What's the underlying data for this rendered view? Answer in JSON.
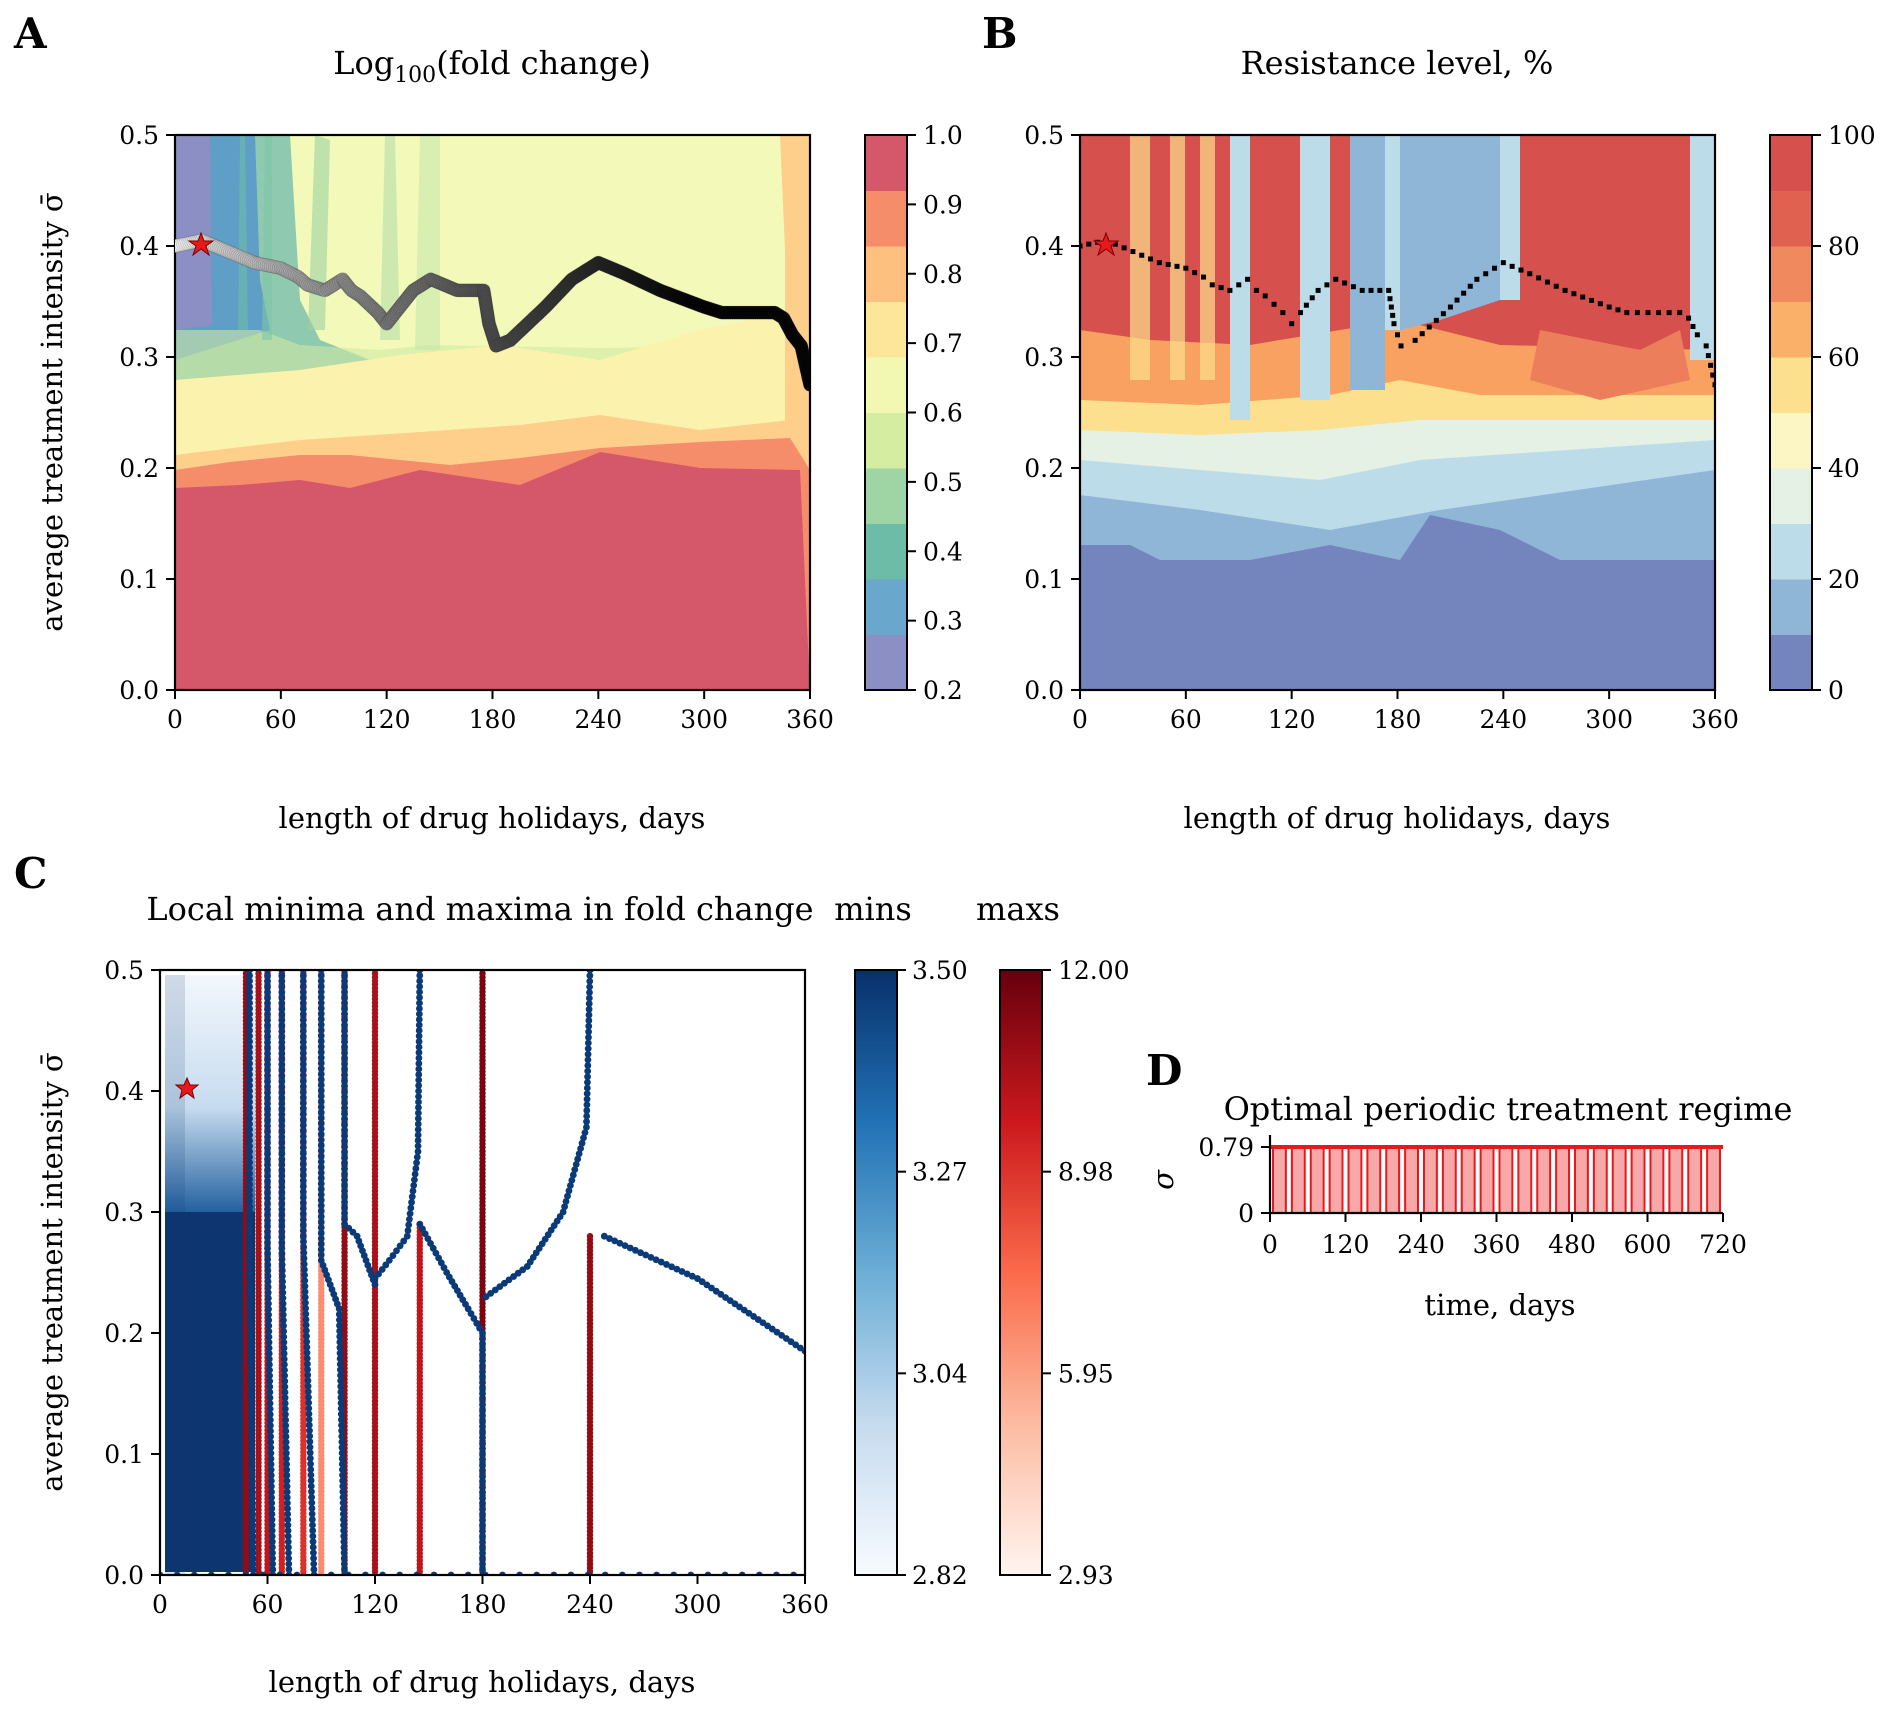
{
  "panels": {
    "A": {
      "letter": "A",
      "title_main": "Log",
      "title_sub": "100",
      "title_rest": "(fold change)",
      "xlabel": "length of drug holidays, days",
      "ylabel": "average treatment intensity σ̄",
      "xticks": [
        "0",
        "60",
        "120",
        "180",
        "240",
        "300",
        "360"
      ],
      "yticks": [
        "0.0",
        "0.1",
        "0.2",
        "0.3",
        "0.4",
        "0.5"
      ],
      "colorbar_ticks": [
        "0.2",
        "0.3",
        "0.4",
        "0.5",
        "0.6",
        "0.7",
        "0.8",
        "0.9",
        "1.0"
      ]
    },
    "B": {
      "letter": "B",
      "title": "Resistance level, %",
      "xlabel": "length of drug holidays, days",
      "xticks": [
        "0",
        "60",
        "120",
        "180",
        "240",
        "300",
        "360"
      ],
      "yticks": [
        "0.0",
        "0.1",
        "0.2",
        "0.3",
        "0.4",
        "0.5"
      ],
      "colorbar_ticks": [
        "0",
        "20",
        "40",
        "60",
        "80",
        "100"
      ]
    },
    "C": {
      "letter": "C",
      "title": "Local minima and maxima in fold change",
      "xlabel": "length of drug holidays, days",
      "ylabel": "average treatment intensity σ̄",
      "xticks": [
        "0",
        "60",
        "120",
        "180",
        "240",
        "300",
        "360"
      ],
      "yticks": [
        "0.0",
        "0.1",
        "0.2",
        "0.3",
        "0.4",
        "0.5"
      ],
      "mins_label": "mins",
      "maxs_label": "maxs",
      "mins_ticks": [
        "3.50",
        "3.27",
        "3.04",
        "2.82"
      ],
      "maxs_ticks": [
        "12.00",
        "8.98",
        "5.95",
        "2.93"
      ]
    },
    "D": {
      "letter": "D",
      "title": "Optimal periodic treatment regime",
      "xlabel": "time, days",
      "ylabel": "σ",
      "xticks": [
        "0",
        "120",
        "240",
        "360",
        "480",
        "600",
        "720"
      ],
      "yticks": [
        "0",
        "0.79"
      ]
    }
  },
  "chart_data": [
    {
      "panel": "A",
      "type": "heatmap",
      "title": "Log100(fold change)",
      "xlabel": "length of drug holidays, days",
      "ylabel": "average treatment intensity σ̄",
      "xlim": [
        0,
        360
      ],
      "ylim": [
        0,
        0.5
      ],
      "colorbar": {
        "levels": [
          0.2,
          0.3,
          0.4,
          0.5,
          0.6,
          0.7,
          0.8,
          0.9,
          1.0
        ],
        "colormap": "Spectral_r"
      },
      "optimal_marker": {
        "x": 15,
        "y": 0.405,
        "color": "#e8191c"
      },
      "optimum_path": [
        [
          0,
          0.4
        ],
        [
          15,
          0.405
        ],
        [
          30,
          0.395
        ],
        [
          45,
          0.385
        ],
        [
          60,
          0.38
        ],
        [
          70,
          0.372
        ],
        [
          75,
          0.365
        ],
        [
          85,
          0.36
        ],
        [
          95,
          0.37
        ],
        [
          100,
          0.36
        ],
        [
          105,
          0.355
        ],
        [
          115,
          0.34
        ],
        [
          120,
          0.33
        ],
        [
          125,
          0.34
        ],
        [
          135,
          0.36
        ],
        [
          145,
          0.37
        ],
        [
          160,
          0.36
        ],
        [
          175,
          0.36
        ],
        [
          178,
          0.33
        ],
        [
          182,
          0.31
        ],
        [
          190,
          0.315
        ],
        [
          210,
          0.345
        ],
        [
          225,
          0.37
        ],
        [
          240,
          0.385
        ],
        [
          255,
          0.375
        ],
        [
          275,
          0.36
        ],
        [
          300,
          0.345
        ],
        [
          310,
          0.34
        ],
        [
          340,
          0.34
        ],
        [
          345,
          0.335
        ],
        [
          350,
          0.32
        ],
        [
          355,
          0.31
        ],
        [
          360,
          0.275
        ]
      ]
    },
    {
      "panel": "B",
      "type": "heatmap",
      "title": "Resistance level, %",
      "xlabel": "length of drug holidays, days",
      "xlim": [
        0,
        360
      ],
      "ylim": [
        0,
        0.5
      ],
      "colorbar": {
        "levels": [
          0,
          10,
          20,
          30,
          40,
          50,
          60,
          70,
          80,
          90,
          100
        ],
        "colormap": "RdYlBu_r"
      },
      "optimal_marker": {
        "x": 15,
        "y": 0.405,
        "color": "#e8191c"
      },
      "optimum_path": [
        [
          0,
          0.4
        ],
        [
          15,
          0.405
        ],
        [
          30,
          0.395
        ],
        [
          45,
          0.385
        ],
        [
          60,
          0.38
        ],
        [
          70,
          0.372
        ],
        [
          75,
          0.365
        ],
        [
          85,
          0.36
        ],
        [
          95,
          0.37
        ],
        [
          100,
          0.36
        ],
        [
          105,
          0.355
        ],
        [
          115,
          0.34
        ],
        [
          120,
          0.33
        ],
        [
          125,
          0.34
        ],
        [
          135,
          0.36
        ],
        [
          145,
          0.37
        ],
        [
          160,
          0.36
        ],
        [
          175,
          0.36
        ],
        [
          178,
          0.33
        ],
        [
          182,
          0.31
        ],
        [
          190,
          0.315
        ],
        [
          210,
          0.345
        ],
        [
          225,
          0.37
        ],
        [
          240,
          0.385
        ],
        [
          255,
          0.375
        ],
        [
          275,
          0.36
        ],
        [
          300,
          0.345
        ],
        [
          310,
          0.34
        ],
        [
          340,
          0.34
        ],
        [
          345,
          0.335
        ],
        [
          350,
          0.32
        ],
        [
          355,
          0.31
        ],
        [
          360,
          0.275
        ]
      ]
    },
    {
      "panel": "C",
      "type": "scatter",
      "title": "Local minima and maxima in fold change",
      "xlabel": "length of drug holidays, days",
      "ylabel": "average treatment intensity σ̄",
      "xlim": [
        0,
        360
      ],
      "ylim": [
        0,
        0.5
      ],
      "colorbars": {
        "mins": [
          2.82,
          3.5
        ],
        "maxs": [
          2.93,
          12.0
        ]
      },
      "optimal_marker": {
        "x": 15,
        "y": 0.405,
        "color": "#e8191c"
      },
      "max_lines": [
        {
          "x": 48,
          "ymax": 0.5,
          "value": 11.0
        },
        {
          "x": 55,
          "ymax": 0.5,
          "value": 10.5
        },
        {
          "x": 60,
          "ymax": 0.5,
          "value": 10.0
        },
        {
          "x": 68,
          "ymax": 0.5,
          "value": 9.5
        },
        {
          "x": 80,
          "ymax": 0.5,
          "value": 9.0
        },
        {
          "x": 90,
          "ymax": 0.5,
          "value": 6.5
        },
        {
          "x": 103,
          "ymax": 0.5,
          "value": 11.0
        },
        {
          "x": 120,
          "ymax": 0.5,
          "value": 10.5
        },
        {
          "x": 145,
          "ymax": 0.29,
          "value": 10.0
        },
        {
          "x": 180,
          "ymax": 0.5,
          "value": 11.5
        },
        {
          "x": 240,
          "ymax": 0.28,
          "value": 11.0
        }
      ],
      "min_curves": [
        [
          [
            50,
            0.5
          ],
          [
            50,
            0.25
          ],
          [
            52,
            0.0
          ]
        ],
        [
          [
            60,
            0.5
          ],
          [
            60,
            0.27
          ],
          [
            63,
            0.0
          ]
        ],
        [
          [
            68,
            0.5
          ],
          [
            68,
            0.27
          ],
          [
            72,
            0.0
          ]
        ],
        [
          [
            80,
            0.5
          ],
          [
            80,
            0.28
          ],
          [
            86,
            0.0
          ]
        ],
        [
          [
            90,
            0.5
          ],
          [
            90,
            0.26
          ],
          [
            95,
            0.24
          ],
          [
            100,
            0.22
          ],
          [
            103,
            0.0
          ]
        ],
        [
          [
            103,
            0.5
          ],
          [
            103,
            0.29
          ],
          [
            110,
            0.28
          ],
          [
            115,
            0.26
          ],
          [
            120,
            0.24
          ]
        ],
        [
          [
            145,
            0.5
          ],
          [
            144,
            0.35
          ],
          [
            138,
            0.28
          ],
          [
            128,
            0.26
          ],
          [
            120,
            0.245
          ]
        ],
        [
          [
            145,
            0.29
          ],
          [
            160,
            0.25
          ],
          [
            172,
            0.22
          ],
          [
            180,
            0.2
          ],
          [
            180,
            0.0
          ]
        ],
        [
          [
            240,
            0.5
          ],
          [
            238,
            0.37
          ],
          [
            225,
            0.3
          ],
          [
            205,
            0.255
          ],
          [
            182,
            0.23
          ]
        ],
        [
          [
            248,
            0.28
          ],
          [
            300,
            0.245
          ],
          [
            360,
            0.185
          ]
        ],
        [
          [
            0,
            0.0
          ],
          [
            360,
            0.0
          ]
        ]
      ]
    },
    {
      "panel": "D",
      "type": "bar",
      "title": "Optimal periodic treatment regime",
      "xlabel": "time, days",
      "ylabel": "σ",
      "xlim": [
        0,
        720
      ],
      "ylim": [
        0,
        0.79
      ],
      "pulse_level": 0.79,
      "pulse_period_days": 30,
      "pulse_count": 24,
      "color": "#e8191c"
    }
  ]
}
